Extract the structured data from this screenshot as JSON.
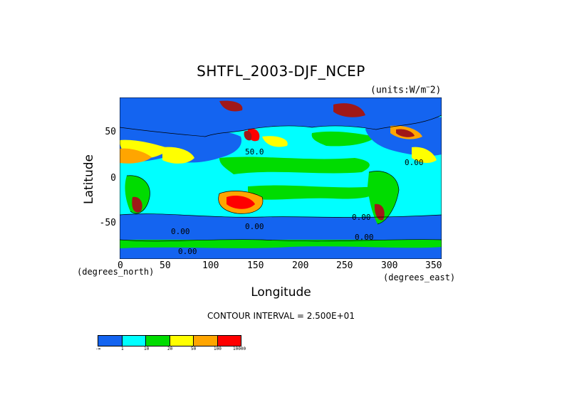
{
  "title": "SHTFL_2003-DJF_NCEP",
  "units": "(units:W/m**2)",
  "x_axis": {
    "label": "Longitude",
    "unit_note": "(degrees_east)",
    "ticks": [
      "0",
      "50",
      "100",
      "150",
      "200",
      "250",
      "300",
      "350"
    ]
  },
  "y_axis": {
    "label": "Latitude",
    "unit_note": "(degrees_north)",
    "ticks": [
      "50",
      "0",
      "-50"
    ]
  },
  "contour_interval": "CONTOUR INTERVAL = 2.500E+01",
  "contour_labels": [
    "50.0",
    "0.00",
    "0.00",
    "0.00",
    "0.00",
    "0.00",
    "0.00"
  ],
  "legend": {
    "colors": [
      "#1464f0",
      "#00ffff",
      "#00dc00",
      "#ffff00",
      "#ffa500",
      "#ff0000"
    ],
    "labels": [
      "-∞",
      "1",
      "10",
      "20",
      "50",
      "100",
      "10000"
    ]
  },
  "map_colors": {
    "deep_blue": "#1464f0",
    "cyan": "#00ffff",
    "green": "#00dc00",
    "yellow": "#ffff00",
    "orange": "#ffa500",
    "red": "#ff0000",
    "dark_red": "#a01818"
  }
}
